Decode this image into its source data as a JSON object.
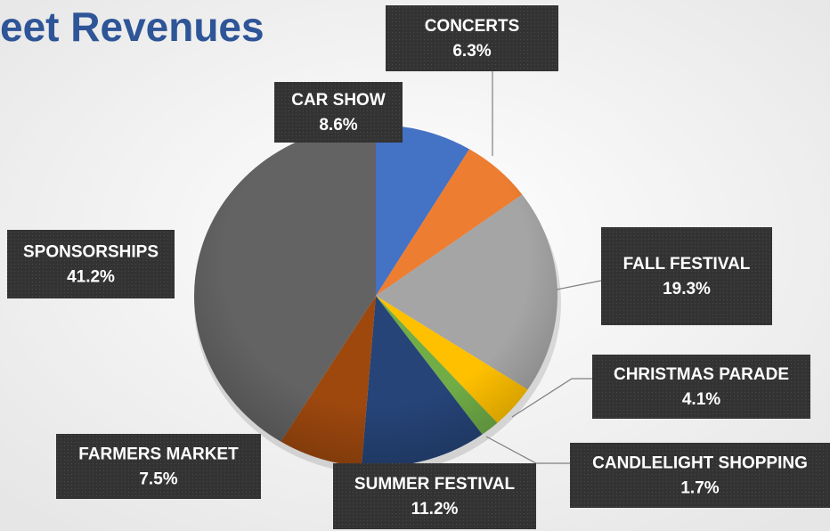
{
  "chart_data": {
    "type": "pie",
    "title": "eet Revenues",
    "categories": [
      "CAR SHOW",
      "CONCERTS",
      "FALL FESTIVAL",
      "CHRISTMAS PARADE",
      "CANDLELIGHT SHOPPING",
      "SUMMER FESTIVAL",
      "FARMERS MARKET",
      "SPONSORSHIPS"
    ],
    "values": [
      8.6,
      6.3,
      19.3,
      4.1,
      1.7,
      11.2,
      7.5,
      41.2
    ],
    "value_labels": [
      "8.6%",
      "6.3%",
      "19.3%",
      "4.1%",
      "1.7%",
      "11.2%",
      "7.5%",
      "41.2%"
    ],
    "colors": [
      "#4472c4",
      "#ed7d31",
      "#a5a5a5",
      "#ffc000",
      "#70ad47",
      "#264478",
      "#9e480e",
      "#636363"
    ]
  }
}
